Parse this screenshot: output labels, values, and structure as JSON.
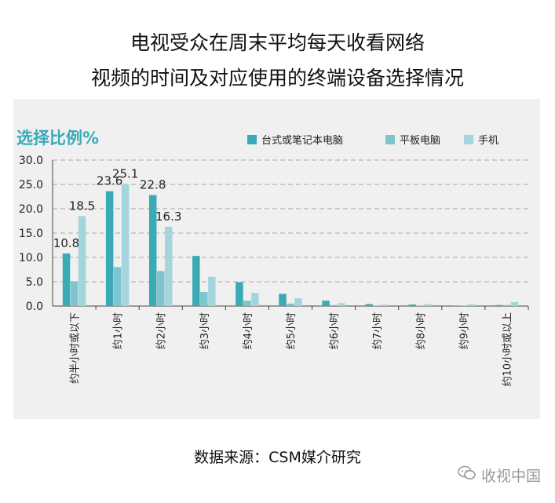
{
  "title_line1": "电视受众在周末平均每天收看网络",
  "title_line2": "视频的时间及对应使用的终端设备选择情况",
  "source": "数据来源：CSM媒介研究",
  "watermark": "收视中国",
  "chart_data": {
    "type": "bar",
    "ylabel": "选择比例%",
    "ylim": [
      0,
      30
    ],
    "yticks": [
      "0.0",
      "5.0",
      "10.0",
      "15.0",
      "20.0",
      "25.0",
      "30.0"
    ],
    "grid": true,
    "legend_position": "top-right",
    "categories": [
      "约半小时或以下",
      "约1小时",
      "约2小时",
      "约3小时",
      "约4小时",
      "约5小时",
      "约6小时",
      "约7小时",
      "约8小时",
      "约9小时",
      "约10小时或以上"
    ],
    "series": [
      {
        "name": "台式或笔记本电脑",
        "color": "#3aaab6",
        "values": [
          10.8,
          23.6,
          22.8,
          10.3,
          4.9,
          2.5,
          1.1,
          0.4,
          0.3,
          0.1,
          0.2
        ]
      },
      {
        "name": "平板电脑",
        "color": "#7cc4ce",
        "values": [
          5.1,
          8.0,
          7.2,
          2.9,
          1.1,
          0.5,
          0.2,
          0.1,
          0.1,
          0.1,
          0.2
        ]
      },
      {
        "name": "手机",
        "color": "#a5d5dc",
        "values": [
          18.5,
          25.1,
          16.3,
          6.0,
          2.7,
          1.6,
          0.6,
          0.3,
          0.4,
          0.4,
          0.8
        ]
      }
    ],
    "data_labels": [
      {
        "series": 0,
        "category": 0,
        "text": "10.8"
      },
      {
        "series": 2,
        "category": 0,
        "text": "18.5"
      },
      {
        "series": 0,
        "category": 1,
        "text": "23.6"
      },
      {
        "series": 2,
        "category": 1,
        "text": "25.1"
      },
      {
        "series": 0,
        "category": 2,
        "text": "22.8"
      },
      {
        "series": 2,
        "category": 2,
        "text": "16.3"
      }
    ]
  }
}
